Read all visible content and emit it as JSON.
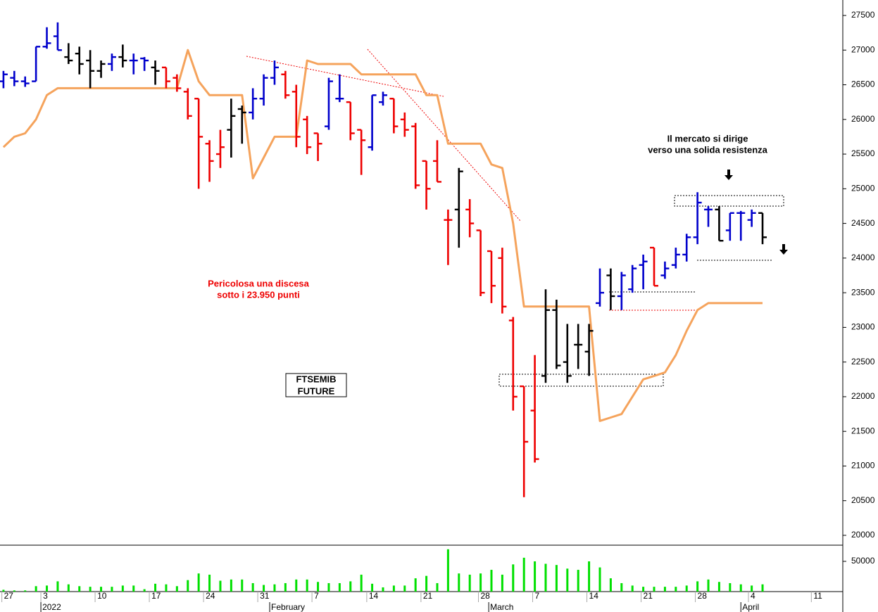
{
  "chart_data": {
    "type": "ohlc",
    "xlim": [
      -0.32,
      77.4
    ],
    "ylim": [
      19858,
      27723
    ],
    "yticks": [
      20000,
      20500,
      21000,
      21500,
      22000,
      22500,
      23000,
      23500,
      24000,
      24500,
      25000,
      25500,
      26000,
      26500,
      27000,
      27500
    ],
    "xticks": [
      {
        "value": -0.15,
        "label": "27"
      },
      {
        "value": 3.45,
        "label": "3"
      },
      {
        "value": 8.45,
        "label": "10"
      },
      {
        "value": 13.45,
        "label": "17"
      },
      {
        "value": 18.45,
        "label": "24"
      },
      {
        "value": 23.45,
        "label": "31"
      },
      {
        "value": 28.45,
        "label": "7"
      },
      {
        "value": 33.5,
        "label": "14"
      },
      {
        "value": 38.5,
        "label": "21"
      },
      {
        "value": 43.8,
        "label": "28"
      },
      {
        "value": 48.8,
        "label": "7"
      },
      {
        "value": 53.8,
        "label": "14"
      },
      {
        "value": 58.8,
        "label": "21"
      },
      {
        "value": 63.8,
        "label": "28"
      },
      {
        "value": 68.7,
        "label": "4"
      },
      {
        "value": 74.5,
        "label": "11"
      }
    ],
    "period_labels": [
      {
        "value": 3.45,
        "label": "2022"
      },
      {
        "value": 24.55,
        "label": "February"
      },
      {
        "value": 44.75,
        "label": "March"
      },
      {
        "value": 68.0,
        "label": "April"
      }
    ],
    "series": [
      {
        "open": [
          26550,
          26600,
          26550,
          26550,
          27050,
          27200,
          26900,
          26950,
          26850,
          26700,
          26800,
          26900,
          26850,
          26880,
          26750,
          26750,
          26600,
          26400,
          26300,
          25650,
          25500,
          25850,
          26150,
          26100,
          26300,
          26600,
          26650,
          26400,
          26000,
          25800,
          25900,
          26300,
          26250,
          25850,
          25600,
          26250,
          26300,
          26000,
          25900,
          25400,
          25400,
          24550,
          24700,
          24700,
          24400,
          24100,
          24000,
          23100,
          22150,
          21800,
          22300,
          23250,
          22500,
          22750,
          22650,
          23350,
          23750,
          23450,
          23550,
          23900,
          24150,
          23750,
          23900,
          24050,
          24300,
          24700,
          24700,
          24400,
          24650,
          24550,
          24650
        ],
        "high": [
          26700,
          26700,
          26620,
          27050,
          27330,
          27400,
          27100,
          27050,
          27000,
          26850,
          26950,
          27080,
          26950,
          26900,
          26850,
          26750,
          26650,
          26450,
          26300,
          25700,
          25850,
          26300,
          26200,
          26450,
          26650,
          26850,
          26700,
          26500,
          26050,
          25800,
          26600,
          26650,
          26250,
          25850,
          26350,
          26400,
          26300,
          26100,
          25950,
          25400,
          25700,
          24700,
          25300,
          24850,
          24400,
          24100,
          24150,
          23150,
          22150,
          22600,
          23550,
          23400,
          23050,
          23050,
          23050,
          23850,
          23850,
          23800,
          23900,
          24050,
          24150,
          23950,
          24150,
          24350,
          24950,
          24750,
          24750,
          24650,
          24680,
          24700,
          24650
        ],
        "low": [
          26450,
          26480,
          26470,
          26550,
          27020,
          27000,
          26800,
          26650,
          26450,
          26600,
          26700,
          26750,
          26650,
          26700,
          26500,
          26450,
          26400,
          26000,
          25000,
          25100,
          25300,
          25450,
          25650,
          26000,
          26200,
          26500,
          26300,
          25600,
          25500,
          25400,
          25850,
          26250,
          25700,
          25200,
          25550,
          26200,
          25800,
          25750,
          25000,
          24700,
          25100,
          23900,
          24150,
          24300,
          23450,
          23350,
          23200,
          21800,
          20550,
          21050,
          22200,
          22400,
          22200,
          22400,
          22300,
          23300,
          23250,
          23250,
          23500,
          23550,
          23600,
          23700,
          23850,
          23950,
          24200,
          24450,
          24250,
          24250,
          24250,
          24450,
          24200
        ],
        "close": [
          26650,
          26550,
          26520,
          27050,
          27100,
          27000,
          26850,
          26800,
          26700,
          26800,
          26900,
          26850,
          26850,
          26850,
          26700,
          26550,
          26450,
          26050,
          25750,
          25400,
          25600,
          26050,
          26100,
          26300,
          26600,
          26750,
          26350,
          25750,
          25600,
          25650,
          26550,
          26300,
          25800,
          25700,
          26350,
          26350,
          25900,
          25850,
          25050,
          25000,
          25100,
          24550,
          25250,
          24500,
          23500,
          23600,
          23300,
          22000,
          21350,
          21100,
          23250,
          22450,
          22300,
          22750,
          22950,
          23500,
          23450,
          23750,
          23850,
          23950,
          23600,
          23850,
          24050,
          24300,
          24800,
          24700,
          24250,
          24650,
          24650,
          24650,
          24300
        ],
        "colors": [
          "#0000cc",
          "#0000cc",
          "#0000cc",
          "#0000cc",
          "#0000cc",
          "#0000cc",
          "#000000",
          "#000000",
          "#000000",
          "#000000",
          "#0000cc",
          "#000000",
          "#0000cc",
          "#0000cc",
          "#000000",
          "#ee0000",
          "#ee0000",
          "#ee0000",
          "#ee0000",
          "#ee0000",
          "#ee0000",
          "#000000",
          "#000000",
          "#0000cc",
          "#0000cc",
          "#0000cc",
          "#ee0000",
          "#ee0000",
          "#ee0000",
          "#ee0000",
          "#0000cc",
          "#0000cc",
          "#ee0000",
          "#ee0000",
          "#0000cc",
          "#0000cc",
          "#ee0000",
          "#ee0000",
          "#ee0000",
          "#ee0000",
          "#ee0000",
          "#ee0000",
          "#000000",
          "#ee0000",
          "#ee0000",
          "#ee0000",
          "#ee0000",
          "#ee0000",
          "#ee0000",
          "#ee0000",
          "#000000",
          "#000000",
          "#000000",
          "#000000",
          "#000000",
          "#0000cc",
          "#000000",
          "#0000cc",
          "#0000cc",
          "#0000cc",
          "#ee0000",
          "#0000cc",
          "#0000cc",
          "#0000cc",
          "#0000cc",
          "#0000cc",
          "#000000",
          "#0000cc",
          "#0000cc",
          "#0000cc",
          "#000000"
        ]
      }
    ],
    "line": {
      "color": "#f5a35c",
      "values": [
        25600,
        25750,
        25800,
        26000,
        26350,
        26450,
        26450,
        26450,
        26450,
        26450,
        26450,
        26450,
        26450,
        26450,
        26450,
        26450,
        26450,
        27000,
        26550,
        26350,
        26350,
        26350,
        26350,
        25150,
        25450,
        25750,
        25750,
        25750,
        26850,
        26800,
        26800,
        26800,
        26800,
        26650,
        26650,
        26650,
        26650,
        26650,
        26650,
        26350,
        26350,
        25650,
        25650,
        25650,
        25650,
        25350,
        25300,
        24500,
        23300,
        23300,
        23300,
        23300,
        23300,
        23300,
        23300,
        21650,
        21700,
        21750,
        22000,
        22250,
        22300,
        22350,
        22600,
        22950,
        23250,
        23350,
        23350,
        23350,
        23350,
        23350,
        23350
      ]
    },
    "volume": {
      "color": "#00e000",
      "ylim": [
        0,
        75600
      ],
      "yticks": [
        50000
      ],
      "values": [
        3000,
        2000,
        2000,
        9000,
        10000,
        17000,
        12000,
        9000,
        8000,
        8000,
        8000,
        10000,
        10000,
        4000,
        13000,
        12000,
        9000,
        19000,
        30000,
        28000,
        18000,
        20000,
        20000,
        14000,
        11000,
        12000,
        14000,
        20000,
        20000,
        16000,
        14000,
        14000,
        17000,
        28000,
        13000,
        7000,
        10000,
        10000,
        22000,
        26000,
        14000,
        70000,
        30000,
        28000,
        30000,
        36000,
        28000,
        45000,
        56000,
        50000,
        46000,
        44000,
        38000,
        36000,
        50000,
        40000,
        22000,
        14000,
        10000,
        8000,
        8000,
        8000,
        8000,
        10000,
        17000,
        20000,
        16000,
        14000,
        12000,
        10000,
        12000
      ]
    },
    "annotations": [
      {
        "color": "#ee0000",
        "lines": [
          "Pericolosa una discesa",
          "sotto i 23.950 punti"
        ]
      },
      {
        "color": "#000000",
        "lines": [
          "Il mercato si dirige",
          "verso una solida resistenza"
        ]
      }
    ],
    "label_box": {
      "lines": [
        "FTSEMIB",
        "FUTURE"
      ]
    }
  }
}
